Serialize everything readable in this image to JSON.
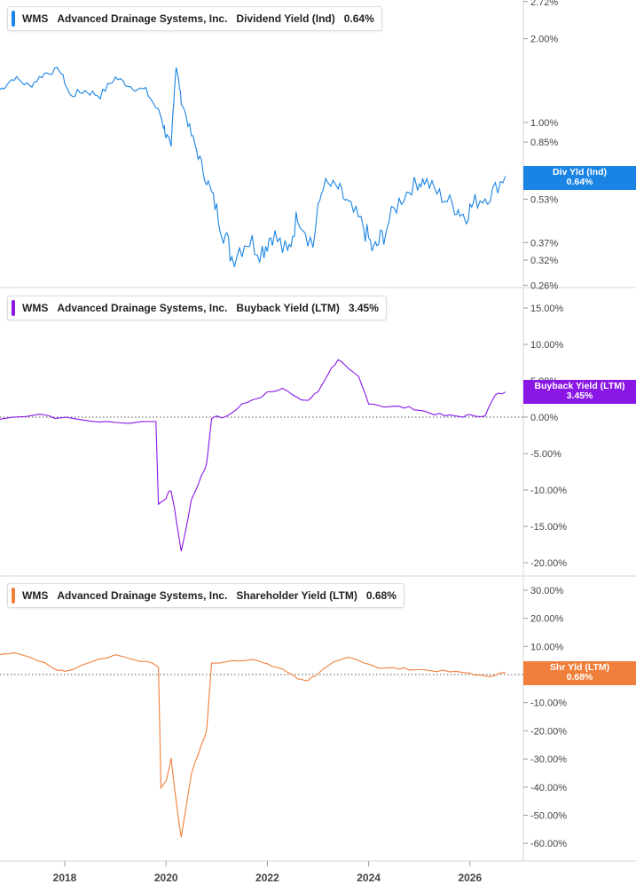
{
  "colors": {
    "dividend": "#1a84e4",
    "buyback": "#8a17e6",
    "shareholder": "#f07f3c",
    "grid_divider": "#d5d5d5",
    "axis_text": "#444444"
  },
  "panels": [
    {
      "ticker": "WMS",
      "company": "Advanced Drainage Systems, Inc.",
      "metric": "Dividend Yield (Ind)",
      "current_value": "0.64%",
      "badge_line1": "Div Yld (Ind)",
      "badge_line2": "0.64%"
    },
    {
      "ticker": "WMS",
      "company": "Advanced Drainage Systems, Inc.",
      "metric": "Buyback Yield (LTM)",
      "current_value": "3.45%",
      "badge_line1": "Buyback Yield (LTM)",
      "badge_line2": "3.45%"
    },
    {
      "ticker": "WMS",
      "company": "Advanced Drainage Systems, Inc.",
      "metric": "Shareholder Yield (LTM)",
      "current_value": "0.68%",
      "badge_line1": "Shr Yld (LTM)",
      "badge_line2": "0.68%"
    }
  ],
  "x_axis": {
    "ticks": [
      "2018",
      "2020",
      "2022",
      "2024",
      "2026"
    ]
  },
  "chart_data": [
    {
      "type": "line",
      "series": [
        {
          "name": "Dividend Yield (Ind)",
          "x": [
            2016.7,
            2017.0,
            2017.3,
            2017.6,
            2017.9,
            2018.1,
            2018.4,
            2018.7,
            2019.0,
            2019.3,
            2019.6,
            2019.9,
            2020.0,
            2020.1,
            2020.2,
            2020.3,
            2020.5,
            2020.7,
            2020.9,
            2021.1,
            2021.3,
            2021.6,
            2021.9,
            2022.1,
            2022.4,
            2022.6,
            2022.9,
            2023.1,
            2023.4,
            2023.6,
            2023.9,
            2024.1,
            2024.3,
            2024.6,
            2024.9,
            2025.1,
            2025.4,
            2025.7,
            2025.9,
            2026.1,
            2026.4,
            2026.7
          ],
          "y": [
            1.3,
            1.45,
            1.35,
            1.5,
            1.55,
            1.25,
            1.3,
            1.25,
            1.45,
            1.35,
            1.3,
            1.05,
            0.9,
            0.8,
            1.6,
            1.2,
            0.9,
            0.7,
            0.55,
            0.42,
            0.33,
            0.38,
            0.35,
            0.4,
            0.33,
            0.47,
            0.36,
            0.6,
            0.58,
            0.5,
            0.42,
            0.34,
            0.4,
            0.52,
            0.6,
            0.62,
            0.55,
            0.5,
            0.46,
            0.52,
            0.55,
            0.64
          ]
        }
      ],
      "y_scale": "log",
      "y_ticks": [
        "2.72%",
        "2.00%",
        "1.00%",
        "0.85%",
        "0.53%",
        "0.37%",
        "0.32%",
        "0.26%"
      ],
      "partially_covered_tick": "0.64%"
    },
    {
      "type": "line",
      "series": [
        {
          "name": "Buyback Yield (LTM)",
          "x": [
            2016.7,
            2017.5,
            2017.8,
            2018.5,
            2019.0,
            2019.8,
            2019.85,
            2020.0,
            2020.1,
            2020.2,
            2020.3,
            2020.5,
            2020.7,
            2020.8,
            2020.9,
            2021.2,
            2021.5,
            2021.8,
            2022.0,
            2022.3,
            2022.6,
            2022.8,
            2023.0,
            2023.2,
            2023.4,
            2023.6,
            2023.8,
            2024.0,
            2024.3,
            2024.6,
            2024.9,
            2025.2,
            2025.5,
            2025.8,
            2026.0,
            2026.3,
            2026.5,
            2026.7
          ],
          "y": [
            -0.3,
            0.5,
            0.0,
            -0.5,
            -0.8,
            -0.5,
            -12.0,
            -11.0,
            -10.0,
            -14.0,
            -18.5,
            -11.5,
            -8.0,
            -6.5,
            0.0,
            0.0,
            1.8,
            2.5,
            3.5,
            4.0,
            2.5,
            2.3,
            3.5,
            6.0,
            8.0,
            6.5,
            5.5,
            2.0,
            1.5,
            1.4,
            1.2,
            0.6,
            0.2,
            0.1,
            0.2,
            0.3,
            3.0,
            3.45
          ]
        }
      ],
      "y_ticks": [
        "15.00%",
        "10.00%",
        "5.00%",
        "0.00%",
        "-5.00%",
        "-10.00%",
        "-15.00%",
        "-20.00%"
      ]
    },
    {
      "type": "line",
      "series": [
        {
          "name": "Shareholder Yield (LTM)",
          "x": [
            2016.7,
            2017.0,
            2017.5,
            2017.8,
            2018.0,
            2018.5,
            2019.0,
            2019.5,
            2019.85,
            2019.9,
            2020.0,
            2020.1,
            2020.2,
            2020.3,
            2020.5,
            2020.7,
            2020.8,
            2020.9,
            2021.3,
            2021.7,
            2022.0,
            2022.3,
            2022.6,
            2022.8,
            2023.0,
            2023.3,
            2023.6,
            2023.9,
            2024.2,
            2024.5,
            2024.8,
            2025.2,
            2025.6,
            2026.0,
            2026.3,
            2026.5,
            2026.7
          ],
          "y": [
            7.0,
            8.0,
            5.0,
            2.0,
            1.0,
            4.5,
            7.0,
            5.0,
            3.0,
            -40.0,
            -38.0,
            -30.0,
            -45.0,
            -58.0,
            -35.0,
            -25.0,
            -20.0,
            4.0,
            5.0,
            5.5,
            3.5,
            2.0,
            -1.5,
            -2.0,
            0.5,
            4.0,
            6.0,
            4.5,
            2.5,
            2.2,
            2.0,
            1.5,
            1.0,
            0.5,
            -0.8,
            0.0,
            0.68
          ]
        }
      ],
      "y_ticks": [
        "30.00%",
        "20.00%",
        "10.00%",
        "-10.00%",
        "-20.00%",
        "-30.00%",
        "-40.00%",
        "-50.00%",
        "-60.00%"
      ],
      "partially_covered_tick": "0.00%"
    }
  ]
}
